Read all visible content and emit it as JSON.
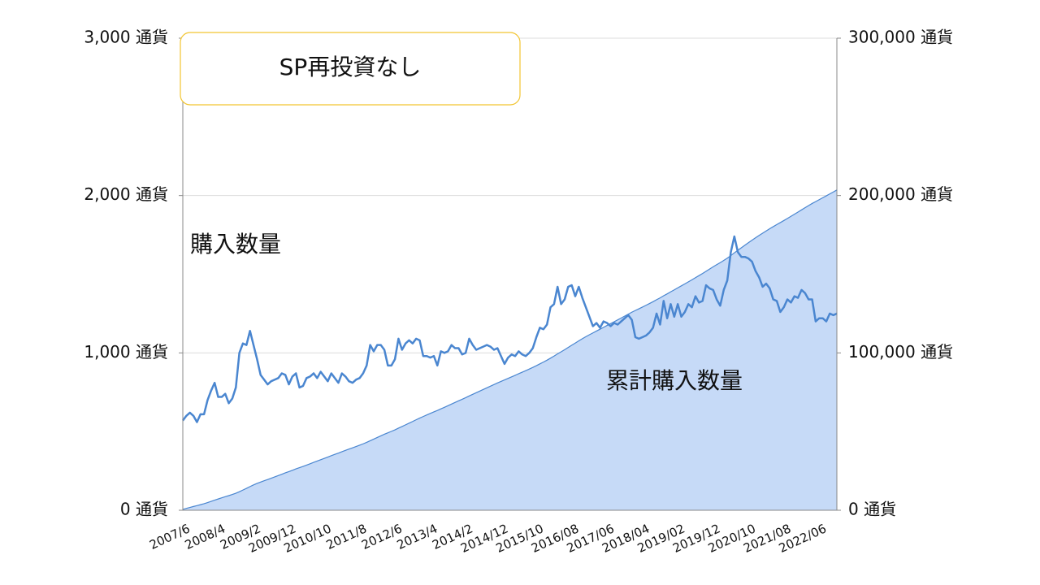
{
  "chart_data": {
    "type": "combo",
    "title": "SP再投資なし",
    "categories": [
      "2007/6",
      null,
      null,
      null,
      null,
      null,
      null,
      null,
      null,
      null,
      "2008/4",
      null,
      null,
      null,
      null,
      null,
      null,
      null,
      null,
      null,
      "2009/2",
      null,
      null,
      null,
      null,
      null,
      null,
      null,
      null,
      null,
      "2009/12",
      null,
      null,
      null,
      null,
      null,
      null,
      null,
      null,
      null,
      "2010/10",
      null,
      null,
      null,
      null,
      null,
      null,
      null,
      null,
      null,
      "2011/8",
      null,
      null,
      null,
      null,
      null,
      null,
      null,
      null,
      null,
      "2012/6",
      null,
      null,
      null,
      null,
      null,
      null,
      null,
      null,
      null,
      "2013/4",
      null,
      null,
      null,
      null,
      null,
      null,
      null,
      null,
      null,
      "2014/2",
      null,
      null,
      null,
      null,
      null,
      null,
      null,
      null,
      null,
      "2014/12",
      null,
      null,
      null,
      null,
      null,
      null,
      null,
      null,
      null,
      "2015/10",
      null,
      null,
      null,
      null,
      null,
      null,
      null,
      null,
      null,
      "2016/08",
      null,
      null,
      null,
      null,
      null,
      null,
      null,
      null,
      null,
      "2017/06",
      null,
      null,
      null,
      null,
      null,
      null,
      null,
      null,
      null,
      "2018/04",
      null,
      null,
      null,
      null,
      null,
      null,
      null,
      null,
      null,
      "2019/02",
      null,
      null,
      null,
      null,
      null,
      null,
      null,
      null,
      null,
      "2019/12",
      null,
      null,
      null,
      null,
      null,
      null,
      null,
      null,
      null,
      "2020/10",
      null,
      null,
      null,
      null,
      null,
      null,
      null,
      null,
      null,
      "2021/08",
      null,
      null,
      null,
      null,
      null,
      null,
      null,
      null,
      null,
      "2022/06",
      null,
      null,
      null,
      null,
      null
    ],
    "series": [
      {
        "name": "累計購入数量",
        "type": "area",
        "axis": "y2",
        "color": "#c6daf7",
        "values": [
          570,
          1170,
          1790,
          2390,
          2950,
          3560,
          4170,
          4870,
          5630,
          6440,
          7160,
          7880,
          8620,
          9300,
          10010,
          10790,
          11790,
          12850,
          13900,
          15040,
          16090,
          17050,
          17910,
          18740,
          19540,
          20360,
          21190,
          22030,
          22900,
          23760,
          24560,
          25410,
          26280,
          27060,
          27850,
          28690,
          29540,
          30410,
          31250,
          32130,
          32980,
          33800,
          34670,
          35510,
          36320,
          37190,
          38040,
          38860,
          39670,
          40500,
          41340,
          42210,
          43130,
          44180,
          45190,
          46240,
          47290,
          48310,
          49230,
          50150,
          51110,
          52200,
          53220,
          54280,
          55360,
          56420,
          57510,
          58590,
          59570,
          60550,
          61520,
          62500,
          63420,
          64430,
          65430,
          66440,
          67490,
          68520,
          69550,
          70540,
          71540,
          72630,
          73680,
          74700,
          75730,
          76770,
          77820,
          78860,
          79880,
          80910,
          81890,
          82820,
          83790,
          84780,
          85760,
          86770,
          87760,
          88740,
          89740,
          90770,
          91870,
          93030,
          94180,
          95360,
          96650,
          97960,
          99380,
          100690,
          102030,
          103450,
          104880,
          106240,
          107660,
          109010,
          110300,
          111530,
          112700,
          113890,
          115050,
          116250,
          117440,
          118610,
          119800,
          120980,
          122180,
          123400,
          124640,
          125850,
          126950,
          128040,
          129140,
          130250,
          131380,
          132540,
          133790,
          134970,
          136300,
          137520,
          138830,
          140060,
          141370,
          142600,
          143860,
          145170,
          146460,
          147820,
          149140,
          150470,
          151900,
          153310,
          154710,
          156050,
          157350,
          158750,
          160210,
          161850,
          163590,
          165230,
          166840,
          168450,
          170050,
          171630,
          173150,
          174630,
          176050,
          177490,
          178900,
          180240,
          181570,
          182830,
          184120,
          185460,
          186780,
          188140,
          189490,
          190890,
          192270,
          193610,
          194950,
          196150,
          197370,
          198590,
          199790,
          201040,
          202280,
          203530
        ]
      },
      {
        "name": "購入数量",
        "type": "line",
        "color": "#4a86d0",
        "values": [
          570,
          600,
          620,
          600,
          560,
          610,
          610,
          700,
          760,
          810,
          720,
          720,
          740,
          680,
          710,
          780,
          1000,
          1060,
          1050,
          1140,
          1050,
          960,
          860,
          830,
          800,
          820,
          830,
          840,
          870,
          860,
          800,
          850,
          870,
          780,
          790,
          840,
          850,
          870,
          840,
          880,
          850,
          820,
          870,
          840,
          810,
          870,
          850,
          820,
          810,
          830,
          840,
          870,
          920,
          1050,
          1010,
          1050,
          1050,
          1020,
          920,
          920,
          960,
          1090,
          1020,
          1060,
          1080,
          1060,
          1090,
          1080,
          980,
          980,
          970,
          980,
          920,
          1010,
          1000,
          1010,
          1050,
          1030,
          1030,
          990,
          1000,
          1090,
          1050,
          1020,
          1030,
          1040,
          1050,
          1040,
          1020,
          1030,
          980,
          930,
          970,
          990,
          980,
          1010,
          990,
          980,
          1000,
          1030,
          1100,
          1160,
          1150,
          1180,
          1290,
          1310,
          1420,
          1310,
          1340,
          1420,
          1430,
          1360,
          1420,
          1350,
          1290,
          1230,
          1170,
          1190,
          1160,
          1200,
          1190,
          1170,
          1190,
          1180,
          1200,
          1220,
          1240,
          1210,
          1100,
          1090,
          1100,
          1110,
          1130,
          1160,
          1250,
          1180,
          1330,
          1220,
          1310,
          1230,
          1310,
          1230,
          1260,
          1310,
          1290,
          1360,
          1320,
          1330,
          1430,
          1410,
          1400,
          1340,
          1300,
          1400,
          1460,
          1640,
          1740,
          1640,
          1610,
          1610,
          1600,
          1580,
          1520,
          1480,
          1420,
          1440,
          1410,
          1340,
          1330,
          1260,
          1290,
          1340,
          1320,
          1360,
          1350,
          1400,
          1380,
          1340,
          1340,
          1200,
          1220,
          1220,
          1200,
          1250,
          1240,
          1250
        ]
      }
    ],
    "ylim": [
      0,
      3000
    ],
    "yticks": [
      {
        "value": 0,
        "label": "0 通貨"
      },
      {
        "value": 1000,
        "label": "1,000 通貨"
      },
      {
        "value": 2000,
        "label": "2,000 通貨"
      },
      {
        "value": 3000,
        "label": "3,000 通貨"
      }
    ],
    "y2lim": [
      0,
      300000
    ],
    "y2ticks": [
      {
        "value": 0,
        "label": "0 通貨"
      },
      {
        "value": 100000,
        "label": "100,000 通貨"
      },
      {
        "value": 200000,
        "label": "200,000 通貨"
      },
      {
        "value": 300000,
        "label": "300,000 通貨"
      }
    ],
    "grid": true
  }
}
